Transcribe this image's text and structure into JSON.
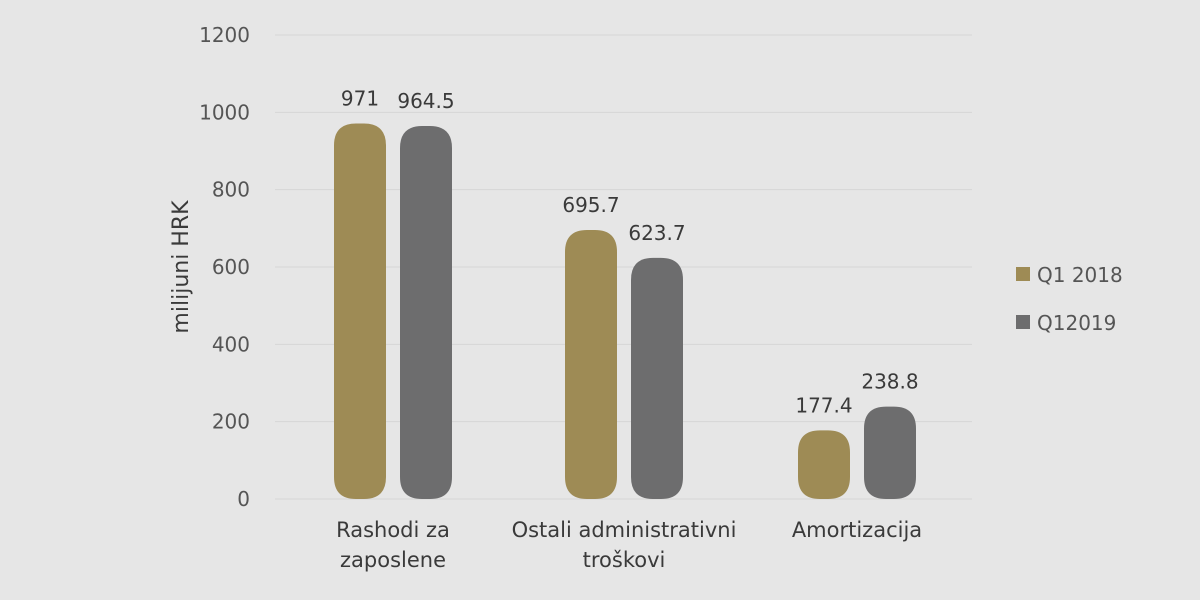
{
  "chart_data": {
    "type": "bar",
    "title": "",
    "xlabel": "",
    "ylabel": "milijuni HRK",
    "ylim": [
      0,
      1200
    ],
    "yticks": [
      0,
      200,
      400,
      600,
      800,
      1000,
      1200
    ],
    "grid": true,
    "legend_position": "right",
    "categories": [
      [
        "Rashodi za",
        "zaposlene"
      ],
      [
        "Ostali administrativni",
        "troškovi"
      ],
      [
        "Amortizacija"
      ]
    ],
    "series": [
      {
        "name": "Q1 2018",
        "color": "#9e8b55",
        "values": [
          971,
          695.7,
          177.4
        ],
        "labels": [
          "971",
          "695.7",
          "177.4"
        ]
      },
      {
        "name": "Q12019",
        "color": "#6d6d6e",
        "values": [
          964.5,
          623.7,
          238.8
        ],
        "labels": [
          "964.5",
          "623.7",
          "238.8"
        ]
      }
    ]
  }
}
